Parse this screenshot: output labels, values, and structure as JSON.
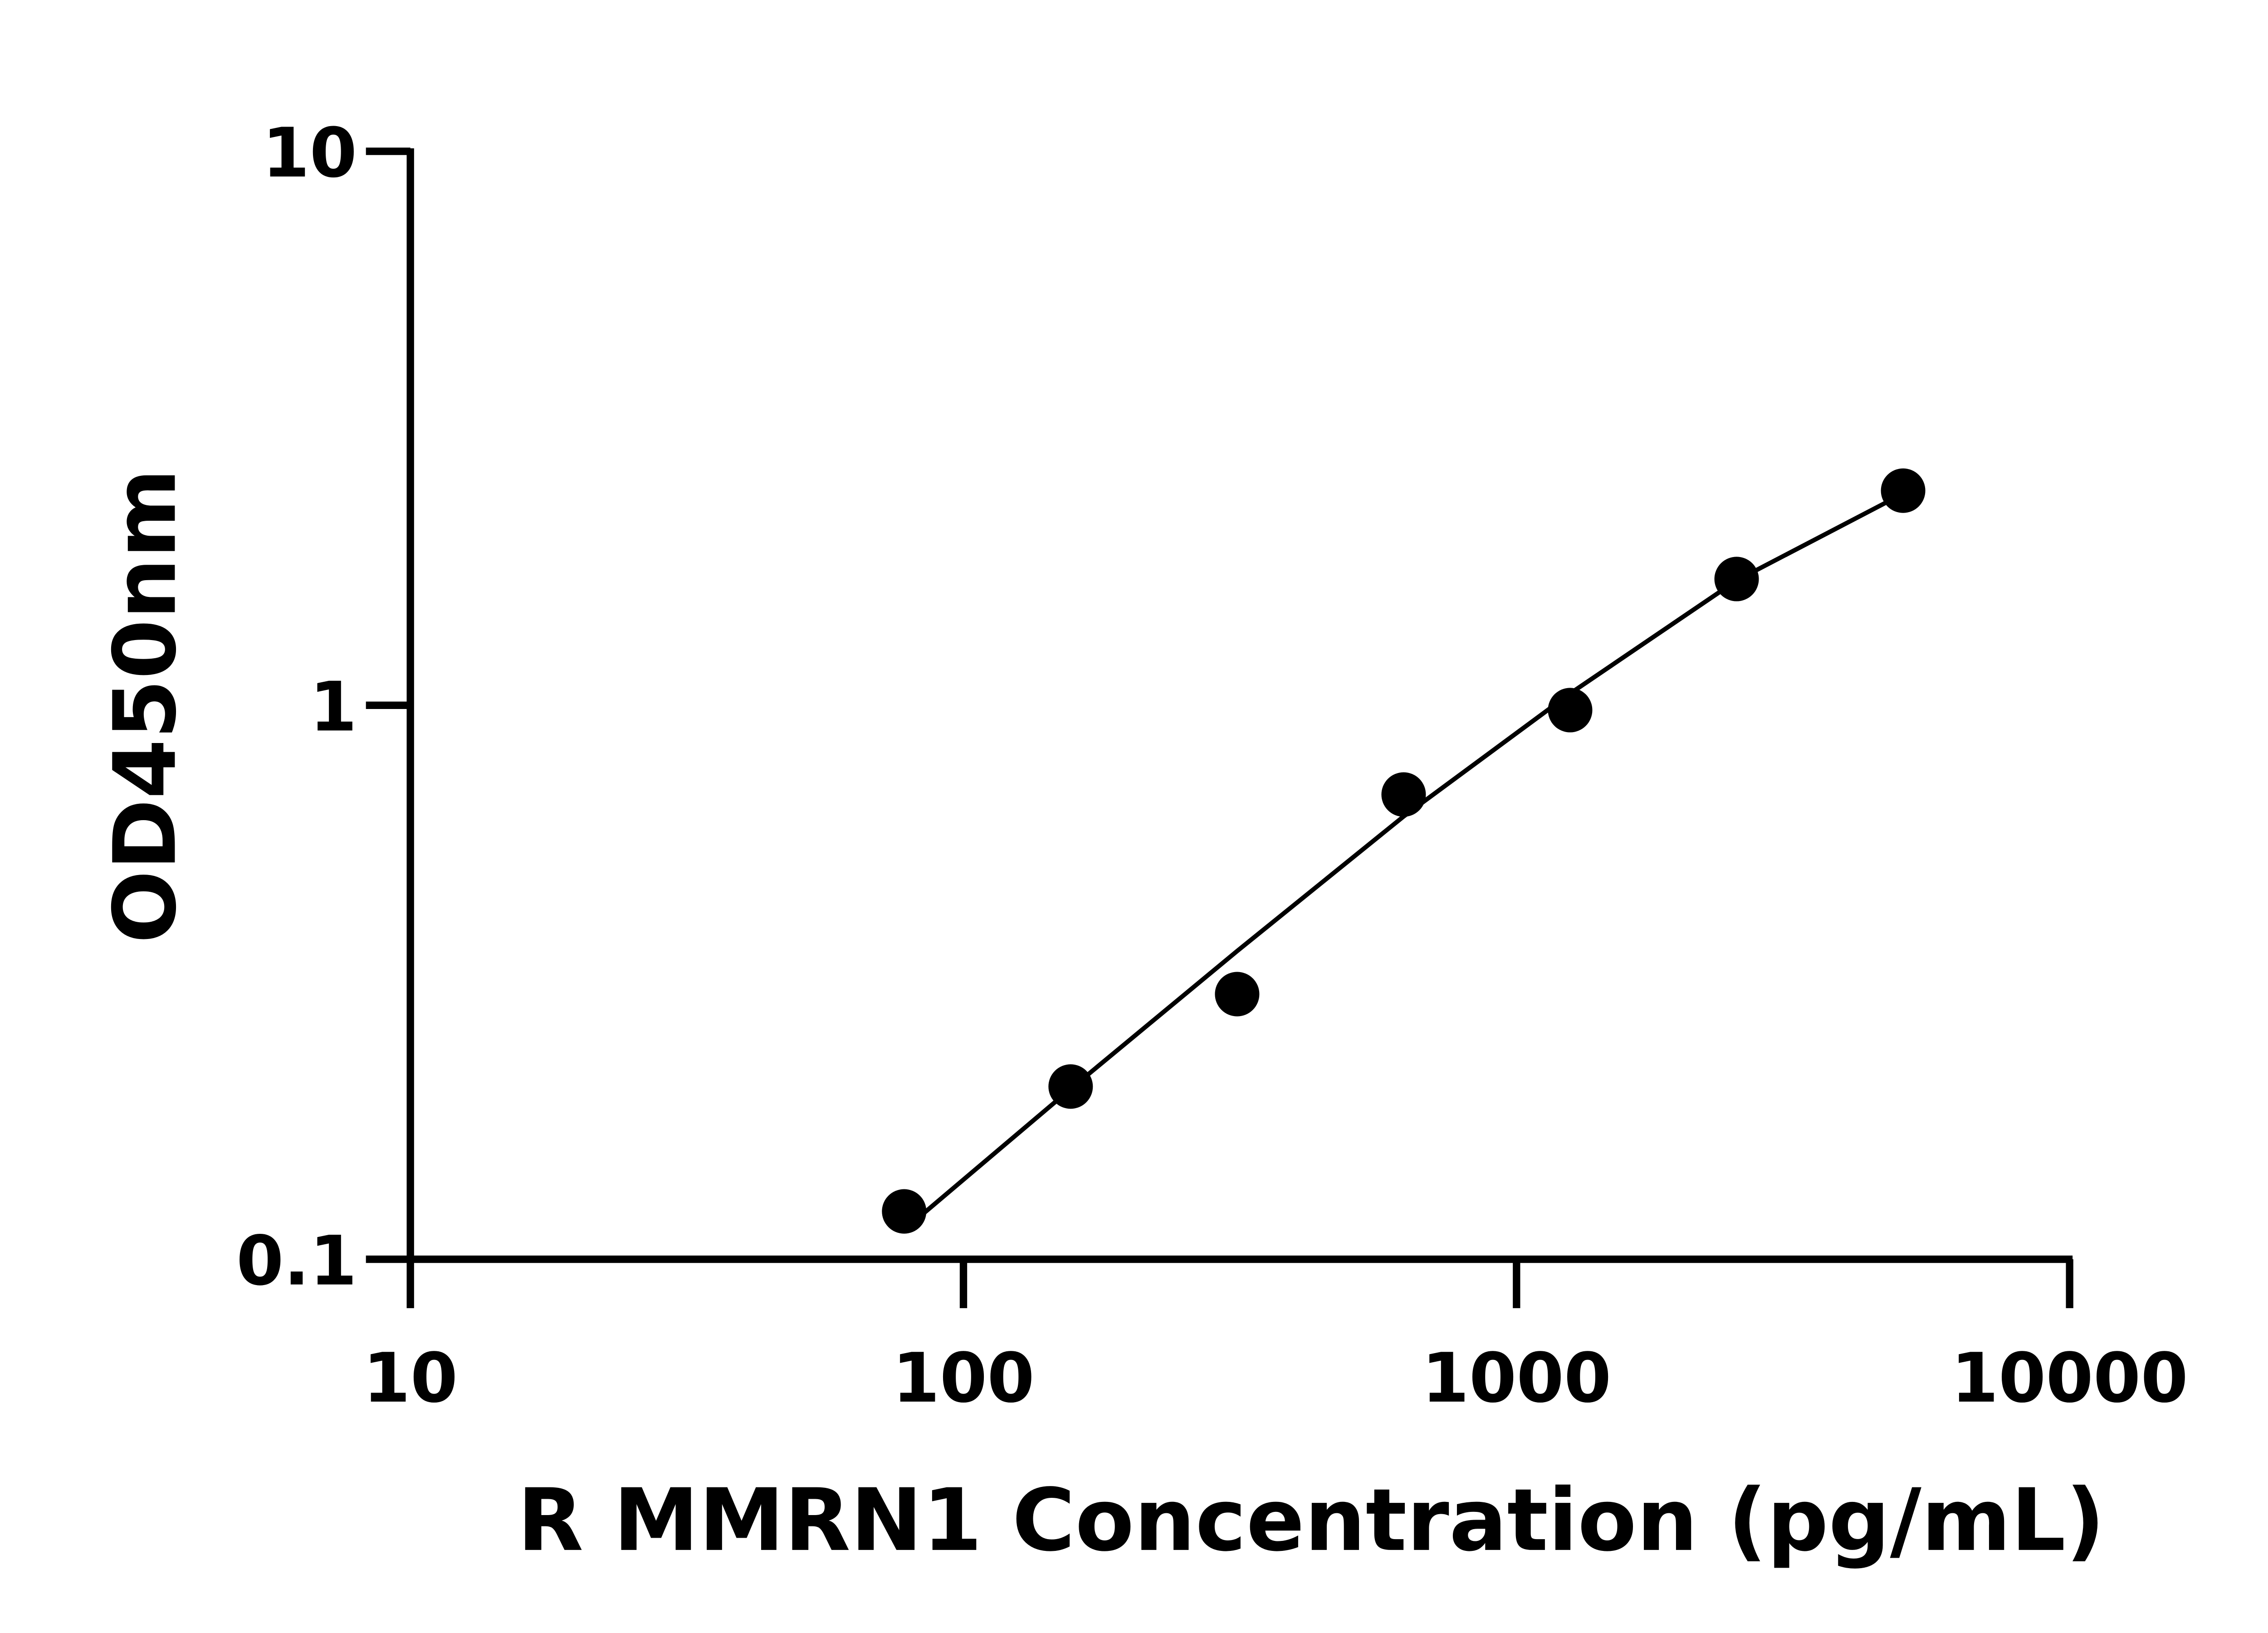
{
  "chart_data": {
    "type": "scatter",
    "x_label": "R MMRN1 Concentration (pg/mL)",
    "y_label": "OD450nm",
    "x_log": true,
    "y_log": true,
    "xlim": [
      10,
      10000
    ],
    "xticks": [
      10,
      100,
      1000,
      10000
    ],
    "ylim": [
      0.1,
      10
    ],
    "yticks": [
      0.1,
      1,
      10
    ],
    "series": [
      {
        "x": [
          78.125,
          156.25,
          312.5,
          625,
          1250,
          2500,
          5000
        ],
        "values": [
          0.122,
          0.205,
          0.301,
          0.69,
          0.98,
          1.69,
          2.44
        ],
        "color": "#000000"
      }
    ],
    "fit": {
      "x": [
        78.125,
        156.25,
        312.5,
        625,
        1250,
        2500,
        5000
      ],
      "values": [
        0.113,
        0.203,
        0.36,
        0.63,
        1.05,
        1.68,
        2.41
      ],
      "color": "#000000"
    }
  }
}
